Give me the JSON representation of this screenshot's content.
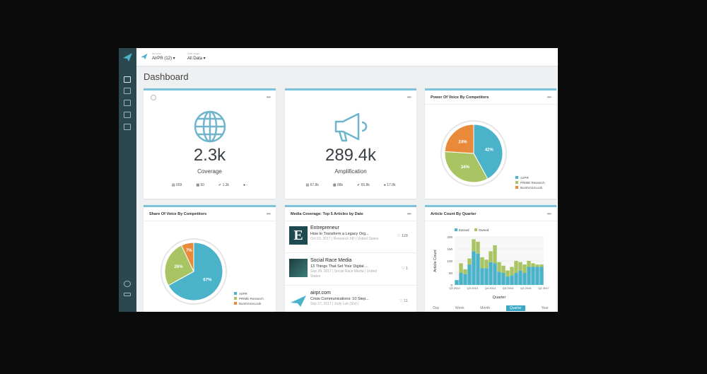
{
  "header": {
    "account_label": "Account",
    "account": "AirPR (12) ▾",
    "date_label": "Date range",
    "date": "All Data ▾"
  },
  "page_title": "Dashboard",
  "sidebar": {
    "items": [
      "dashboard-icon",
      "reports-icon",
      "tasks-icon",
      "calendar-icon",
      "list-icon",
      "settings-icon",
      "logout-icon"
    ]
  },
  "colors": {
    "accent": "#3aa9c5",
    "airpr": "#4ab2c9",
    "prime": "#a9c563",
    "third": "#e98a3a",
    "sidebar": "#2b4850"
  },
  "coverage": {
    "value": "2.3k",
    "label": "Coverage",
    "stats": [
      "659",
      "50",
      "1.3k",
      "-"
    ]
  },
  "amplification": {
    "value": "289.4k",
    "label": "Amplification",
    "stats": [
      "67.8k",
      "88k",
      "65.8k",
      "17.8k"
    ]
  },
  "power_of_voice": {
    "title": "Power Of Voice By Competitors",
    "menu": "•••"
  },
  "share_of_voice": {
    "title": "Share Of Voice By Competitors",
    "menu": "•••"
  },
  "legend": [
    "AirPR",
    "PRIME Research",
    "BurstVoiceLook"
  ],
  "media": {
    "title": "Media Coverage: Top 5 Articles by Date",
    "menu": "•••",
    "articles": [
      {
        "source": "Entrepreneur",
        "title": "How to Transform a Legacy Org...",
        "meta": "Oct 03, 2017 | Research XR | United States",
        "count": "128"
      },
      {
        "source": "Social Race Media",
        "title": "13 Things That Set Your Digital ...",
        "meta": "Sep 28, 2017 | Social Race Media | United States",
        "count": "1"
      },
      {
        "source": "airpr.com",
        "title": "Crisis Communications: 10 Step...",
        "meta": "Sep 27, 2017 | Judy Luk (Shi) |",
        "count": "11"
      }
    ]
  },
  "article_count": {
    "title": "Article Count By Quarter",
    "menu": "•••",
    "tabs": [
      "Day",
      "Week",
      "Month",
      "Quarter",
      "Year"
    ],
    "active_tab": "Quarter"
  },
  "chart_data": [
    {
      "type": "pie",
      "title": "Power Of Voice By Competitors",
      "labels": [
        "AirPR",
        "PRIME Research",
        "BurstVoiceLook"
      ],
      "values": [
        42,
        34,
        24
      ],
      "display": [
        "42%",
        "34%",
        "24%"
      ]
    },
    {
      "type": "pie",
      "title": "Share Of Voice By Competitors",
      "labels": [
        "AirPR",
        "PRIME Research",
        "BurstVoiceLook"
      ],
      "values": [
        67,
        26,
        7
      ],
      "display": [
        "67%",
        "26%",
        "7%"
      ]
    },
    {
      "type": "bar",
      "stacked": true,
      "title": "Article Count By Quarter",
      "xlabel": "Quarter",
      "ylabel": "Article Count",
      "ylim": [
        0,
        200
      ],
      "yticks": [
        "0",
        "50",
        "100",
        "150",
        "200"
      ],
      "xticks": [
        "Q3 2012",
        "Q3 2013",
        "Q4 2014",
        "Q3 2015",
        "Q3 2016",
        "Q2 2017"
      ],
      "series": [
        {
          "name": "Earned",
          "values": [
            20,
            50,
            45,
            85,
            140,
            130,
            70,
            70,
            95,
            90,
            55,
            50,
            35,
            40,
            50,
            60,
            50,
            75,
            75,
            75,
            75
          ]
        },
        {
          "name": "Owned",
          "values": [
            0,
            40,
            20,
            25,
            50,
            50,
            45,
            35,
            45,
            75,
            40,
            30,
            25,
            35,
            50,
            35,
            35,
            25,
            15,
            10,
            10
          ]
        }
      ]
    }
  ]
}
